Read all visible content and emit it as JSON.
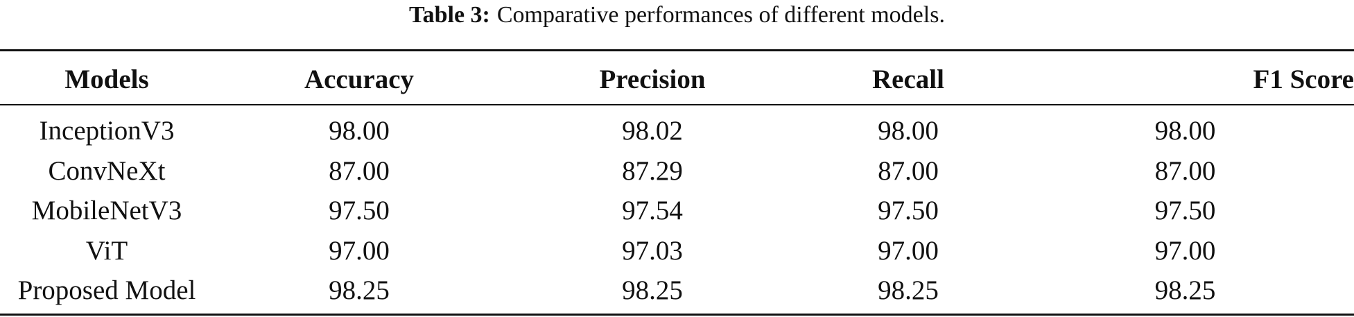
{
  "table": {
    "caption_label": "Table 3:",
    "caption_text": "Comparative performances of different models.",
    "headers": [
      "Models",
      "Accuracy",
      "Precision",
      "Recall",
      "F1 Score"
    ],
    "rows": [
      [
        "InceptionV3",
        "98.00",
        "98.02",
        "98.00",
        "98.00"
      ],
      [
        "ConvNeXt",
        "87.00",
        "87.29",
        "87.00",
        "87.00"
      ],
      [
        "MobileNetV3",
        "97.50",
        "97.54",
        "97.50",
        "97.50"
      ],
      [
        "ViT",
        "97.00",
        "97.03",
        "97.00",
        "97.00"
      ],
      [
        "Proposed Model",
        "98.25",
        "98.25",
        "98.25",
        "98.25"
      ]
    ]
  }
}
